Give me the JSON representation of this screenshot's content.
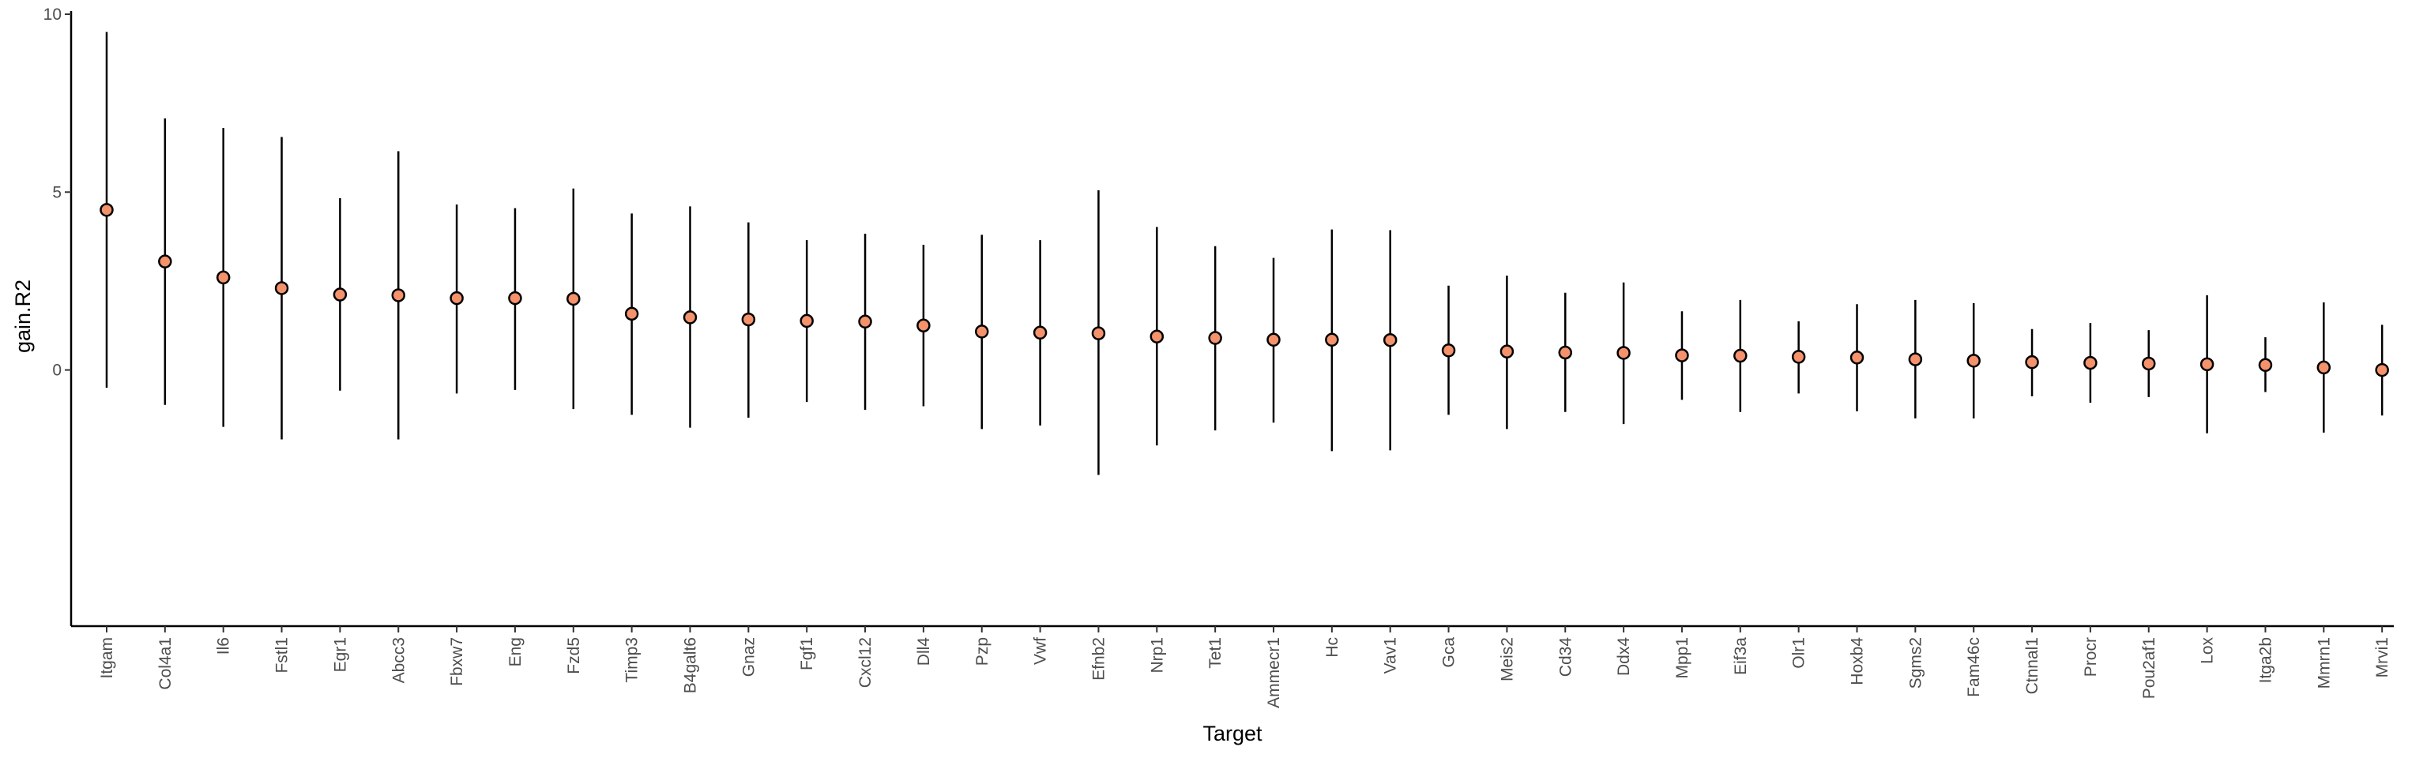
{
  "chart_data": {
    "type": "scatter",
    "subtype": "point-range",
    "xlabel": "Target",
    "ylabel": "gain.R2",
    "ylim": [
      -7.2,
      10
    ],
    "yticks": [
      0,
      5,
      10
    ],
    "grid": false,
    "legend": "none",
    "point_color": "#F4926C",
    "point_stroke": "#000000",
    "x": [
      "Itgam",
      "Col4a1",
      "Il6",
      "Fstl1",
      "Egr1",
      "Abcc3",
      "Fbxw7",
      "Eng",
      "Fzd5",
      "Timp3",
      "B4galt6",
      "Gnaz",
      "Fgf1",
      "Cxcl12",
      "Dll4",
      "Pzp",
      "Vwf",
      "Efnb2",
      "Nrp1",
      "Tet1",
      "Ammecr1",
      "Hc",
      "Vav1",
      "Gca",
      "Meis2",
      "Cd34",
      "Ddx4",
      "Mpp1",
      "Eif3a",
      "Olr1",
      "Hoxb4",
      "Sgms2",
      "Fam46c",
      "Ctnnal1",
      "Procr",
      "Pou2af1",
      "Lox",
      "Itga2b",
      "Mmrn1",
      "Mrvi1"
    ],
    "y": [
      4.5,
      3.05,
      2.6,
      2.3,
      2.12,
      2.1,
      2.02,
      2.02,
      2.0,
      1.58,
      1.48,
      1.42,
      1.38,
      1.36,
      1.25,
      1.08,
      1.05,
      1.03,
      0.94,
      0.9,
      0.85,
      0.85,
      0.84,
      0.55,
      0.52,
      0.49,
      0.48,
      0.41,
      0.4,
      0.37,
      0.35,
      0.3,
      0.26,
      0.22,
      0.2,
      0.18,
      0.16,
      0.14,
      0.07,
      0.0
    ],
    "lower": [
      -0.5,
      -0.98,
      -1.6,
      -1.95,
      -0.58,
      -1.95,
      -0.66,
      -0.56,
      -1.1,
      -1.26,
      -1.62,
      -1.34,
      -0.9,
      -1.12,
      -1.02,
      -1.66,
      -1.56,
      -2.95,
      -2.12,
      -1.7,
      -1.48,
      -2.28,
      -2.26,
      -1.26,
      -1.66,
      -1.18,
      -1.52,
      -0.84,
      -1.18,
      -0.66,
      -1.16,
      -1.36,
      -1.36,
      -0.74,
      -0.92,
      -0.76,
      -1.78,
      -0.62,
      -1.76,
      -1.28
    ],
    "upper": [
      9.5,
      7.07,
      6.8,
      6.55,
      4.83,
      6.15,
      4.65,
      4.55,
      5.1,
      4.4,
      4.6,
      4.15,
      3.65,
      3.83,
      3.52,
      3.8,
      3.65,
      5.05,
      4.02,
      3.48,
      3.15,
      3.95,
      3.93,
      2.37,
      2.65,
      2.17,
      2.46,
      1.65,
      1.97,
      1.37,
      1.85,
      1.97,
      1.88,
      1.15,
      1.32,
      1.12,
      2.1,
      0.92,
      1.9,
      1.27
    ]
  }
}
